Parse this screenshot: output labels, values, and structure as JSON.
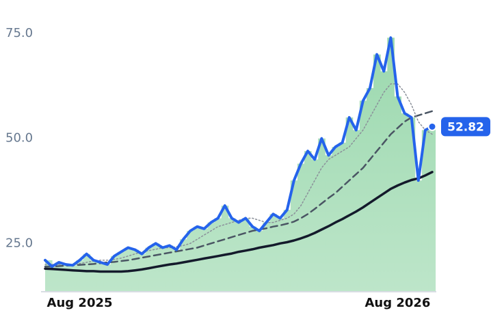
{
  "chart_data": {
    "type": "line",
    "x": [
      0,
      1,
      2,
      3,
      4,
      5,
      6,
      7,
      8,
      9,
      10,
      11,
      12,
      13,
      14,
      15,
      16,
      17,
      18,
      19,
      20,
      21,
      22,
      23,
      24,
      25,
      26,
      27,
      28,
      29,
      30,
      31,
      32,
      33,
      34,
      35,
      36,
      37,
      38,
      39,
      40,
      41,
      42,
      43,
      44,
      45,
      46,
      47,
      48,
      49,
      50,
      51,
      52,
      53,
      54,
      55,
      56
    ],
    "xlim": [
      0,
      56
    ],
    "xticks": [
      {
        "value": 5,
        "label": "Aug 2025"
      },
      {
        "value": 51,
        "label": "Aug 2026"
      }
    ],
    "ylim": [
      13.5,
      76.5
    ],
    "yticks": [
      {
        "value": 25,
        "label": "25.0"
      },
      {
        "value": 50,
        "label": "50.0"
      },
      {
        "value": 75,
        "label": "75.0"
      }
    ],
    "area_color": "#9ad8ad",
    "series": [
      {
        "color": "#2563eb",
        "style": "solid",
        "width": 4,
        "values": [
          21,
          19.5,
          20.5,
          20,
          19.8,
          21,
          22.5,
          21,
          20.5,
          20,
          22,
          23,
          24,
          23.5,
          22.5,
          24,
          25,
          24,
          24.5,
          23.5,
          26,
          28,
          29,
          28.5,
          30,
          31,
          34,
          31,
          30,
          31,
          29,
          28,
          30,
          32,
          31,
          33,
          40,
          44,
          47,
          45,
          50,
          46,
          48,
          49,
          55,
          52,
          59,
          62,
          70,
          66,
          74,
          60,
          56,
          55,
          40,
          52,
          52.82
        ]
      },
      {
        "color": "#8a8f99",
        "style": "dotted",
        "width": 1.5,
        "values": [
          20,
          20,
          20,
          20,
          20,
          20.2,
          20.5,
          20.8,
          21,
          21,
          21.2,
          21.5,
          22,
          22.5,
          23,
          23.3,
          23.6,
          24,
          24,
          24.2,
          24.5,
          25,
          26,
          27,
          28,
          29,
          29.5,
          30,
          30.5,
          31,
          31,
          30.5,
          30,
          30,
          30.5,
          31,
          32,
          34,
          37,
          40,
          43,
          45,
          46,
          47,
          48,
          50,
          52,
          55,
          58,
          61,
          63,
          63,
          61,
          58,
          54,
          52,
          51
        ]
      },
      {
        "color": "#4a5563",
        "style": "dashed",
        "width": 2.5,
        "values": [
          19.5,
          19.5,
          19.6,
          19.7,
          19.8,
          19.9,
          20,
          20.1,
          20.3,
          20.5,
          20.6,
          20.8,
          21,
          21.3,
          21.6,
          21.9,
          22.2,
          22.5,
          22.8,
          23.1,
          23.4,
          23.7,
          24,
          24.5,
          25,
          25.5,
          26,
          26.5,
          27,
          27.5,
          28,
          28.3,
          28.6,
          29,
          29.3,
          29.7,
          30.2,
          31,
          32,
          33.2,
          34.5,
          35.8,
          37,
          38.5,
          40,
          41.5,
          43,
          45,
          47,
          49,
          51,
          52.5,
          54,
          55,
          55.5,
          56,
          56.5
        ]
      },
      {
        "color": "#141a2b",
        "style": "solid",
        "width": 3.5,
        "values": [
          19,
          18.9,
          18.8,
          18.7,
          18.6,
          18.5,
          18.4,
          18.4,
          18.3,
          18.3,
          18.3,
          18.3,
          18.4,
          18.6,
          18.8,
          19.1,
          19.4,
          19.7,
          20,
          20.2,
          20.5,
          20.8,
          21.1,
          21.4,
          21.7,
          22,
          22.3,
          22.6,
          23,
          23.3,
          23.6,
          24,
          24.3,
          24.6,
          25,
          25.3,
          25.7,
          26.2,
          26.8,
          27.5,
          28.3,
          29.1,
          30,
          30.8,
          31.7,
          32.6,
          33.6,
          34.7,
          35.8,
          36.9,
          38,
          38.8,
          39.5,
          40.1,
          40.5,
          41.2,
          42
        ]
      }
    ]
  }
}
